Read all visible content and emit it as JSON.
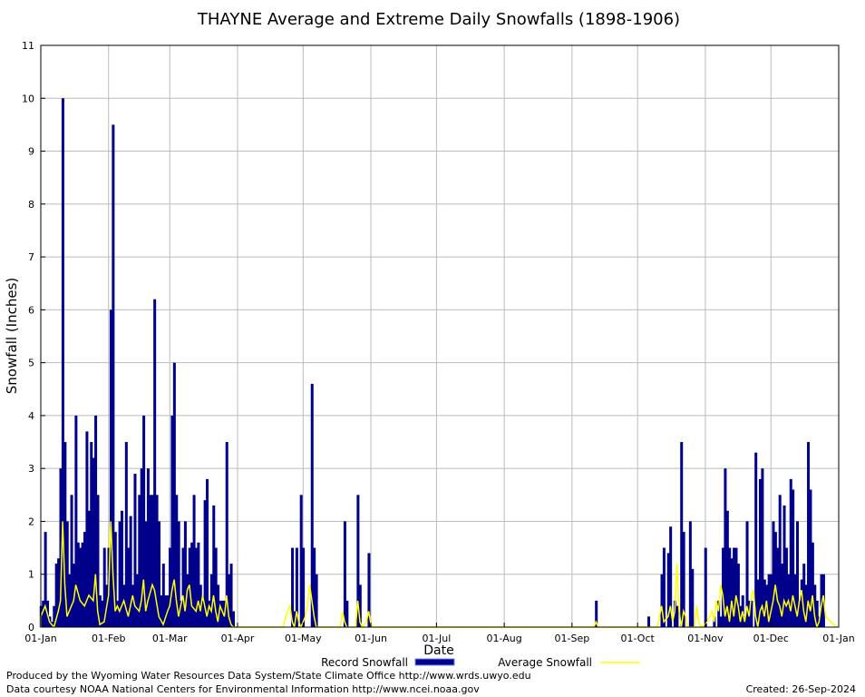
{
  "chart_data": {
    "type": "bar",
    "title": "THAYNE Average and Extreme Daily Snowfalls (1898-1906)",
    "xlabel": "Date",
    "ylabel": "Snowfall (Inches)",
    "ylim": [
      0,
      11
    ],
    "yticks": [
      "0",
      "1",
      "2",
      "3",
      "4",
      "5",
      "6",
      "7",
      "8",
      "9",
      "10",
      "11"
    ],
    "xticks": [
      "01-Jan",
      "01-Feb",
      "01-Mar",
      "01-Apr",
      "01-May",
      "01-Jun",
      "01-Jul",
      "01-Aug",
      "01-Sep",
      "01-Oct",
      "01-Nov",
      "01-Dec",
      "01-Jan"
    ],
    "grid": true,
    "legend": {
      "placement": "bottom",
      "record_label": "Record Snowfall",
      "average_label": "Average Snowfall"
    },
    "colors": {
      "record": "#00008B",
      "average": "#FFFF00",
      "grid": "#BBBBBB"
    },
    "record_snowfall": [
      [
        1,
        0.4
      ],
      [
        2,
        0.5
      ],
      [
        3,
        1.8
      ],
      [
        4,
        0.5
      ],
      [
        5,
        0.2
      ],
      [
        6,
        0.1
      ],
      [
        7,
        0.4
      ],
      [
        8,
        1.2
      ],
      [
        9,
        1.3
      ],
      [
        10,
        3.0
      ],
      [
        11,
        10.0
      ],
      [
        12,
        3.5
      ],
      [
        13,
        2.0
      ],
      [
        14,
        1.0
      ],
      [
        15,
        2.5
      ],
      [
        16,
        1.2
      ],
      [
        17,
        4.0
      ],
      [
        18,
        1.6
      ],
      [
        19,
        1.5
      ],
      [
        20,
        1.6
      ],
      [
        21,
        1.8
      ],
      [
        22,
        3.7
      ],
      [
        23,
        2.2
      ],
      [
        24,
        3.5
      ],
      [
        25,
        3.2
      ],
      [
        26,
        4.0
      ],
      [
        27,
        2.5
      ],
      [
        28,
        0.6
      ],
      [
        29,
        0.5
      ],
      [
        30,
        1.5
      ],
      [
        31,
        0.8
      ],
      [
        32,
        1.5
      ],
      [
        33,
        6.0
      ],
      [
        34,
        9.5
      ],
      [
        35,
        1.8
      ],
      [
        36,
        0.5
      ],
      [
        37,
        2.0
      ],
      [
        38,
        2.2
      ],
      [
        39,
        0.8
      ],
      [
        40,
        3.5
      ],
      [
        41,
        1.5
      ],
      [
        42,
        2.1
      ],
      [
        43,
        0.8
      ],
      [
        44,
        2.9
      ],
      [
        45,
        1.0
      ],
      [
        46,
        2.5
      ],
      [
        47,
        3.0
      ],
      [
        48,
        4.0
      ],
      [
        49,
        2.0
      ],
      [
        50,
        3.0
      ],
      [
        51,
        2.5
      ],
      [
        52,
        2.5
      ],
      [
        53,
        6.2
      ],
      [
        54,
        2.5
      ],
      [
        55,
        2.0
      ],
      [
        56,
        0.6
      ],
      [
        57,
        1.2
      ],
      [
        58,
        0.6
      ],
      [
        59,
        0.6
      ],
      [
        60,
        1.5
      ],
      [
        61,
        4.0
      ],
      [
        62,
        5.0
      ],
      [
        63,
        2.5
      ],
      [
        64,
        2.0
      ],
      [
        65,
        0.5
      ],
      [
        66,
        1.5
      ],
      [
        67,
        2.0
      ],
      [
        68,
        1.0
      ],
      [
        69,
        1.5
      ],
      [
        70,
        1.6
      ],
      [
        71,
        2.5
      ],
      [
        72,
        1.5
      ],
      [
        73,
        1.6
      ],
      [
        74,
        0.8
      ],
      [
        75,
        0.5
      ],
      [
        76,
        2.4
      ],
      [
        77,
        2.8
      ],
      [
        78,
        0.5
      ],
      [
        79,
        1.0
      ],
      [
        80,
        2.3
      ],
      [
        81,
        1.5
      ],
      [
        82,
        0.8
      ],
      [
        83,
        0.5
      ],
      [
        84,
        0.5
      ],
      [
        85,
        0.5
      ],
      [
        86,
        3.5
      ],
      [
        87,
        1.0
      ],
      [
        88,
        1.2
      ],
      [
        89,
        0.3
      ],
      [
        116,
        1.5
      ],
      [
        117,
        0.3
      ],
      [
        118,
        1.5
      ],
      [
        120,
        2.5
      ],
      [
        121,
        1.5
      ],
      [
        125,
        4.6
      ],
      [
        126,
        1.5
      ],
      [
        127,
        1.0
      ],
      [
        140,
        2.0
      ],
      [
        141,
        0.5
      ],
      [
        146,
        2.5
      ],
      [
        147,
        0.8
      ],
      [
        151,
        1.4
      ],
      [
        255,
        0.5
      ],
      [
        279,
        0.2
      ],
      [
        285,
        1.0
      ],
      [
        286,
        1.5
      ],
      [
        288,
        1.4
      ],
      [
        289,
        1.9
      ],
      [
        291,
        0.5
      ],
      [
        292,
        0.4
      ],
      [
        294,
        3.5
      ],
      [
        295,
        1.8
      ],
      [
        298,
        2.0
      ],
      [
        299,
        1.1
      ],
      [
        305,
        1.5
      ],
      [
        309,
        0.2
      ],
      [
        311,
        0.5
      ],
      [
        312,
        0.2
      ],
      [
        313,
        1.5
      ],
      [
        314,
        3.0
      ],
      [
        315,
        2.2
      ],
      [
        316,
        1.5
      ],
      [
        317,
        1.3
      ],
      [
        318,
        1.5
      ],
      [
        319,
        1.5
      ],
      [
        320,
        1.2
      ],
      [
        321,
        0.4
      ],
      [
        322,
        0.6
      ],
      [
        323,
        0.2
      ],
      [
        324,
        2.0
      ],
      [
        325,
        0.5
      ],
      [
        326,
        0.5
      ],
      [
        328,
        3.3
      ],
      [
        329,
        0.9
      ],
      [
        330,
        2.8
      ],
      [
        331,
        3.0
      ],
      [
        332,
        0.9
      ],
      [
        333,
        0.8
      ],
      [
        334,
        1.0
      ],
      [
        335,
        1.0
      ],
      [
        336,
        2.0
      ],
      [
        337,
        1.8
      ],
      [
        338,
        1.5
      ],
      [
        339,
        2.5
      ],
      [
        340,
        1.2
      ],
      [
        341,
        2.3
      ],
      [
        342,
        1.5
      ],
      [
        343,
        1.0
      ],
      [
        344,
        2.8
      ],
      [
        345,
        2.6
      ],
      [
        346,
        1.0
      ],
      [
        347,
        2.0
      ],
      [
        348,
        0.5
      ],
      [
        349,
        0.9
      ],
      [
        350,
        1.2
      ],
      [
        351,
        0.8
      ],
      [
        352,
        3.5
      ],
      [
        353,
        2.6
      ],
      [
        354,
        1.6
      ],
      [
        355,
        0.8
      ],
      [
        356,
        0.5
      ],
      [
        357,
        0.2
      ],
      [
        358,
        1.0
      ],
      [
        359,
        1.0
      ]
    ],
    "average_snowfall": [
      [
        1,
        0.2
      ],
      [
        3,
        0.4
      ],
      [
        5,
        0.1
      ],
      [
        7,
        0.0
      ],
      [
        9,
        0.3
      ],
      [
        10,
        0.5
      ],
      [
        11,
        2.0
      ],
      [
        12,
        0.8
      ],
      [
        13,
        0.2
      ],
      [
        14,
        0.3
      ],
      [
        16,
        0.5
      ],
      [
        17,
        0.8
      ],
      [
        19,
        0.5
      ],
      [
        21,
        0.4
      ],
      [
        23,
        0.6
      ],
      [
        25,
        0.5
      ],
      [
        26,
        1.0
      ],
      [
        27,
        0.3
      ],
      [
        28,
        0.05
      ],
      [
        30,
        0.1
      ],
      [
        32,
        0.6
      ],
      [
        33,
        2.0
      ],
      [
        34,
        1.0
      ],
      [
        35,
        0.3
      ],
      [
        36,
        0.4
      ],
      [
        37,
        0.3
      ],
      [
        39,
        0.5
      ],
      [
        41,
        0.2
      ],
      [
        43,
        0.6
      ],
      [
        44,
        0.4
      ],
      [
        46,
        0.3
      ],
      [
        47,
        0.5
      ],
      [
        48,
        0.9
      ],
      [
        49,
        0.3
      ],
      [
        50,
        0.5
      ],
      [
        52,
        0.8
      ],
      [
        53,
        0.7
      ],
      [
        55,
        0.2
      ],
      [
        57,
        0.05
      ],
      [
        59,
        0.3
      ],
      [
        60,
        0.4
      ],
      [
        61,
        0.7
      ],
      [
        62,
        0.9
      ],
      [
        63,
        0.5
      ],
      [
        64,
        0.2
      ],
      [
        66,
        0.6
      ],
      [
        67,
        0.3
      ],
      [
        68,
        0.7
      ],
      [
        69,
        0.8
      ],
      [
        70,
        0.4
      ],
      [
        72,
        0.3
      ],
      [
        73,
        0.5
      ],
      [
        74,
        0.3
      ],
      [
        75,
        0.6
      ],
      [
        77,
        0.2
      ],
      [
        78,
        0.4
      ],
      [
        79,
        0.3
      ],
      [
        80,
        0.6
      ],
      [
        81,
        0.3
      ],
      [
        82,
        0.1
      ],
      [
        83,
        0.4
      ],
      [
        85,
        0.2
      ],
      [
        86,
        0.6
      ],
      [
        87,
        0.2
      ],
      [
        88,
        0.05
      ],
      [
        89,
        0.0
      ],
      [
        112,
        0.0
      ],
      [
        113,
        0.2
      ],
      [
        114,
        0.3
      ],
      [
        115,
        0.4
      ],
      [
        116,
        0.1
      ],
      [
        117,
        0.0
      ],
      [
        118,
        0.3
      ],
      [
        119,
        0.1
      ],
      [
        120,
        0.0
      ],
      [
        122,
        0.2
      ],
      [
        123,
        0.4
      ],
      [
        124,
        0.8
      ],
      [
        125,
        0.5
      ],
      [
        126,
        0.2
      ],
      [
        127,
        0.0
      ],
      [
        138,
        0.0
      ],
      [
        139,
        0.3
      ],
      [
        140,
        0.1
      ],
      [
        141,
        0.0
      ],
      [
        145,
        0.0
      ],
      [
        146,
        0.5
      ],
      [
        147,
        0.1
      ],
      [
        148,
        0.0
      ],
      [
        150,
        0.1
      ],
      [
        151,
        0.3
      ],
      [
        152,
        0.05
      ],
      [
        153,
        0.0
      ],
      [
        254,
        0.0
      ],
      [
        255,
        0.1
      ],
      [
        256,
        0.0
      ],
      [
        283,
        0.0
      ],
      [
        284,
        0.2
      ],
      [
        285,
        0.4
      ],
      [
        286,
        0.1
      ],
      [
        288,
        0.2
      ],
      [
        289,
        0.4
      ],
      [
        290,
        0.1
      ],
      [
        291,
        0.3
      ],
      [
        292,
        1.2
      ],
      [
        293,
        0.3
      ],
      [
        294,
        0.0
      ],
      [
        295,
        0.3
      ],
      [
        296,
        0.2
      ],
      [
        297,
        0.0
      ],
      [
        300,
        0.0
      ],
      [
        301,
        0.4
      ],
      [
        302,
        0.1
      ],
      [
        303,
        0.0
      ],
      [
        306,
        0.1
      ],
      [
        308,
        0.3
      ],
      [
        309,
        0.1
      ],
      [
        310,
        0.5
      ],
      [
        311,
        0.3
      ],
      [
        312,
        0.8
      ],
      [
        313,
        0.6
      ],
      [
        314,
        0.2
      ],
      [
        315,
        0.4
      ],
      [
        316,
        0.1
      ],
      [
        317,
        0.5
      ],
      [
        318,
        0.2
      ],
      [
        319,
        0.6
      ],
      [
        320,
        0.4
      ],
      [
        321,
        0.1
      ],
      [
        322,
        0.3
      ],
      [
        323,
        0.1
      ],
      [
        324,
        0.4
      ],
      [
        325,
        0.2
      ],
      [
        326,
        0.6
      ],
      [
        327,
        0.7
      ],
      [
        328,
        0.2
      ],
      [
        329,
        0.0
      ],
      [
        330,
        0.3
      ],
      [
        331,
        0.4
      ],
      [
        332,
        0.2
      ],
      [
        333,
        0.5
      ],
      [
        334,
        0.1
      ],
      [
        335,
        0.3
      ],
      [
        336,
        0.5
      ],
      [
        337,
        0.8
      ],
      [
        338,
        0.5
      ],
      [
        339,
        0.4
      ],
      [
        340,
        0.2
      ],
      [
        341,
        0.5
      ],
      [
        342,
        0.4
      ],
      [
        343,
        0.5
      ],
      [
        344,
        0.3
      ],
      [
        345,
        0.6
      ],
      [
        346,
        0.4
      ],
      [
        347,
        0.2
      ],
      [
        348,
        0.5
      ],
      [
        349,
        0.7
      ],
      [
        350,
        0.3
      ],
      [
        351,
        0.1
      ],
      [
        352,
        0.5
      ],
      [
        353,
        0.3
      ],
      [
        354,
        0.6
      ],
      [
        355,
        0.2
      ],
      [
        356,
        0.0
      ],
      [
        357,
        0.1
      ],
      [
        358,
        0.4
      ],
      [
        359,
        0.6
      ],
      [
        360,
        0.2
      ]
    ]
  },
  "footer": {
    "produced_by": "Produced by the Wyoming Water Resources Data System/State Climate Office http://www.wrds.uwyo.edu",
    "courtesy": "Data courtesy NOAA National Centers for Environmental Information http://www.ncei.noaa.gov",
    "created": "Created:  26-Sep-2024"
  }
}
